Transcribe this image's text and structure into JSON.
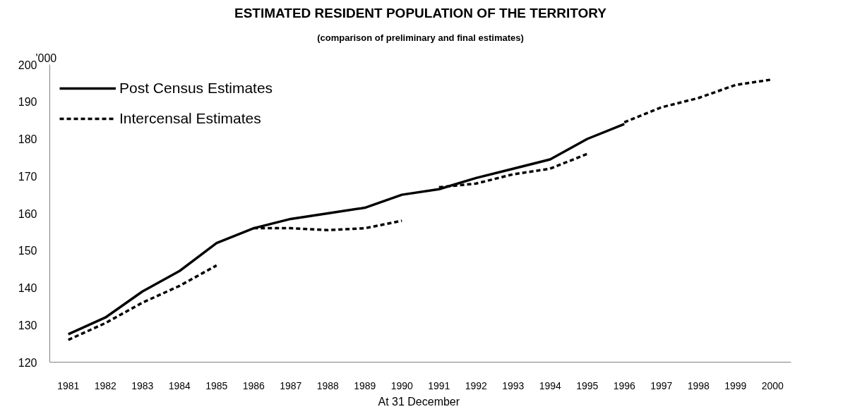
{
  "chart_data": {
    "type": "line",
    "title": "ESTIMATED RESIDENT POPULATION OF THE TERRITORY",
    "subtitle": "(comparison of preliminary and final estimates)",
    "ylabel": "'000",
    "xlabel": "At 31  December",
    "xlim": [
      1980.5,
      2000.5
    ],
    "xticks": [
      1981,
      1982,
      1983,
      1984,
      1985,
      1986,
      1987,
      1988,
      1989,
      1990,
      1991,
      1992,
      1993,
      1994,
      1995,
      1996,
      1997,
      1998,
      1999,
      2000
    ],
    "ylim": [
      120,
      200
    ],
    "yticks": [
      120,
      130,
      140,
      150,
      160,
      170,
      180,
      190,
      200
    ],
    "grid": false,
    "legend": "top left",
    "series": [
      {
        "name": "Post Census Estimates",
        "color": "#000000",
        "line_style": "solid",
        "x": [
          1981,
          1982,
          1983,
          1984,
          1985,
          1986,
          1987,
          1988,
          1989,
          1990,
          1991,
          1992,
          1993,
          1994,
          1995,
          1996
        ],
        "values": [
          127.5,
          132,
          139,
          144.5,
          152,
          156,
          158.5,
          160,
          161.5,
          165,
          166.5,
          169.5,
          172,
          174.5,
          180,
          184
        ]
      },
      {
        "name": "Intercensal Estimates",
        "color": "#000000",
        "line_style": "dashed",
        "x": [
          1981,
          1982,
          1983,
          1984,
          1985,
          1985.5,
          1986,
          1987,
          1988,
          1989,
          1990,
          1990.5,
          1991,
          1992,
          1993,
          1994,
          1995,
          1995.5,
          1996,
          1997,
          1998,
          1999,
          2000
        ],
        "values": [
          126,
          130.5,
          136,
          140.5,
          146,
          null,
          156,
          156,
          155.5,
          156,
          158,
          null,
          167,
          168,
          170.5,
          172,
          176,
          null,
          184.5,
          188.5,
          191,
          194.5,
          196
        ]
      }
    ]
  }
}
